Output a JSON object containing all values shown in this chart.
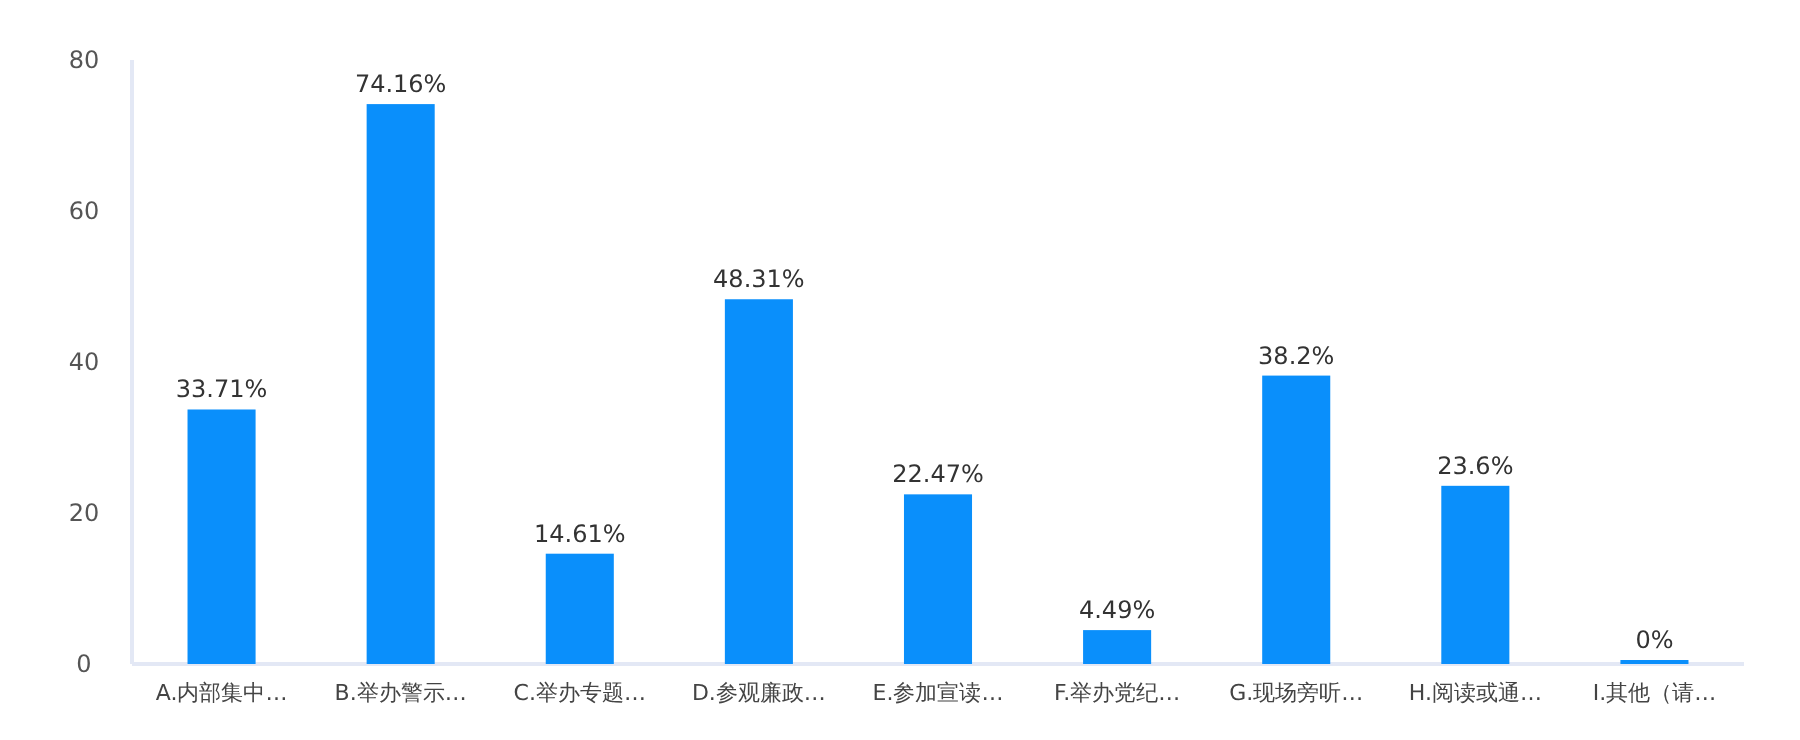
{
  "chart_data": {
    "type": "bar",
    "categories": [
      "A.内部集中…",
      "B.举办警示…",
      "C.举办专题…",
      "D.参观廉政…",
      "E.参加宣读…",
      "F.举办党纪…",
      "G.现场旁听…",
      "H.阅读或通…",
      "I.其他（请…"
    ],
    "values": [
      33.71,
      74.16,
      14.61,
      48.31,
      22.47,
      4.49,
      38.2,
      23.6,
      0
    ],
    "value_labels": [
      "33.71%",
      "74.16%",
      "14.61%",
      "48.31%",
      "22.47%",
      "4.49%",
      "38.2%",
      "23.6%",
      "0%"
    ],
    "color": "#0a8ffb",
    "ylim": [
      0,
      80
    ],
    "yticks": [
      0,
      20,
      40,
      60,
      80
    ]
  }
}
